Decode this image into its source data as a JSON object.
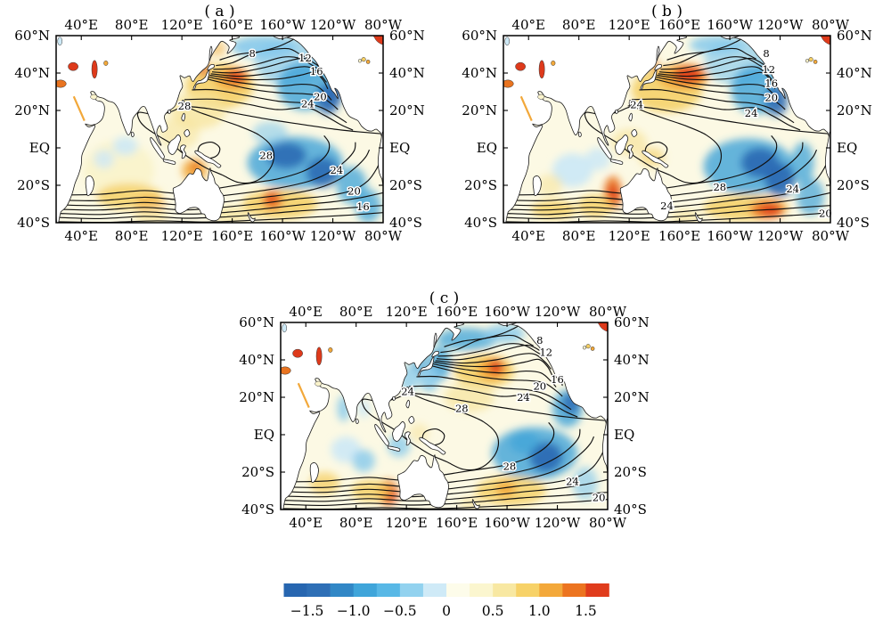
{
  "figure": {
    "background": "#ffffff"
  },
  "axes": {
    "lon_labels": [
      {
        "text": "40°E",
        "lon": 40
      },
      {
        "text": "80°E",
        "lon": 80
      },
      {
        "text": "120°E",
        "lon": 120
      },
      {
        "text": "160°E",
        "lon": 160
      },
      {
        "text": "160°W",
        "lon": 200
      },
      {
        "text": "120°W",
        "lon": 240
      },
      {
        "text": "80°W",
        "lon": 280
      }
    ],
    "lat_labels": [
      {
        "text": "60°N",
        "lat": 60
      },
      {
        "text": "40°N",
        "lat": 40
      },
      {
        "text": "20°N",
        "lat": 20
      },
      {
        "text": "EQ",
        "lat": 0
      },
      {
        "text": "20°S",
        "lat": -20
      },
      {
        "text": "40°S",
        "lat": -40
      }
    ]
  },
  "colorbar": {
    "tick_labels": [
      "−1.5",
      "−1.0",
      "−0.5",
      "0",
      "0.5",
      "1.0",
      "1.5"
    ],
    "colors": [
      "#2766b0",
      "#2e6fb6",
      "#3187c6",
      "#3fa5da",
      "#58b8e6",
      "#92d2ef",
      "#cfeaf7",
      "#fdfcea",
      "#fbf6cf",
      "#f8e8a2",
      "#f7d268",
      "#f3a83a",
      "#ec7420",
      "#e03c1c"
    ]
  },
  "palette": {
    "base": "#fcf9e4",
    "b4": "#2a68b2",
    "b3": "#3fa3d8",
    "b2": "#86c9ec",
    "b1": "#cde9f6",
    "y1": "#faf3cb",
    "y2": "#f7e49c",
    "y3": "#f5cf63",
    "o1": "#f2a83a",
    "o2": "#e97420",
    "r1": "#de3a1b"
  },
  "chart_data": {
    "type": "heatmap",
    "description": "Three map panels of sea surface temperature: black contours show climatological SST (contour labels in °C-like values 8-28) and shading shows SST anomalies from -1.5 to +1.5 over the Indo-Pacific domain.",
    "lon_range": [
      20,
      280
    ],
    "lat_range": [
      -40,
      60
    ],
    "contour_levels": [
      6,
      8,
      10,
      12,
      14,
      16,
      18,
      20,
      22,
      24,
      26,
      28,
      29
    ],
    "colorbar_range": [
      -1.75,
      1.75
    ],
    "colorbar_step": 0.25,
    "panels": [
      {
        "id": "a",
        "title": "( a )",
        "contour_labels": [
          {
            "v": "8",
            "lon": 176,
            "lat": 50.5
          },
          {
            "v": "12",
            "lon": 218,
            "lat": 48
          },
          {
            "v": "16",
            "lon": 227,
            "lat": 41
          },
          {
            "v": "20",
            "lon": 230,
            "lat": 27.5
          },
          {
            "v": "24",
            "lon": 220,
            "lat": 23.5
          },
          {
            "v": "28",
            "lon": 122,
            "lat": 22.5
          },
          {
            "v": "28",
            "lon": 187,
            "lat": -4
          },
          {
            "v": "24",
            "lon": 243,
            "lat": -12
          },
          {
            "v": "20",
            "lon": 257,
            "lat": -23
          },
          {
            "v": "16",
            "lon": 264,
            "lat": -31.5
          }
        ],
        "anomalies": [
          [
            185,
            54,
            26,
            6,
            "b2",
            0.9
          ],
          [
            206,
            46,
            28,
            13,
            "b2",
            0.7
          ],
          [
            218,
            33,
            22,
            13,
            "b3",
            0.8
          ],
          [
            236,
            26,
            9,
            8,
            "b4",
            0.9
          ],
          [
            243,
            31,
            5,
            8,
            "b4",
            0.8
          ],
          [
            150,
            33,
            27,
            12,
            "y3",
            0.85
          ],
          [
            160,
            37,
            14,
            6,
            "o1",
            0.95
          ],
          [
            163,
            38,
            8,
            3.5,
            "r1",
            0.95
          ],
          [
            137,
            43,
            3,
            5,
            "r1",
            0.9
          ],
          [
            148,
            53,
            7,
            4,
            "o1",
            0.5
          ],
          [
            133,
            20,
            22,
            10,
            "y2",
            0.75
          ],
          [
            118,
            8,
            16,
            9,
            "y2",
            0.6
          ],
          [
            210,
            -8,
            38,
            14,
            "b3",
            0.8
          ],
          [
            203,
            -4,
            16,
            7,
            "b4",
            0.85
          ],
          [
            232,
            -13,
            13,
            8,
            "b4",
            0.85
          ],
          [
            255,
            -20,
            12,
            10,
            "b3",
            0.75
          ],
          [
            268,
            -31,
            10,
            9,
            "b3",
            0.75
          ],
          [
            190,
            8,
            14,
            6,
            "b2",
            0.6
          ],
          [
            70,
            -12,
            28,
            16,
            "y1",
            0.95
          ],
          [
            75,
            1,
            10,
            5,
            "b1",
            0.9
          ],
          [
            58,
            -6,
            8,
            5,
            "b1",
            0.8
          ],
          [
            78,
            -26,
            26,
            7,
            "y3",
            0.8
          ],
          [
            95,
            -30,
            12,
            5,
            "o1",
            0.55
          ],
          [
            130,
            -12,
            10,
            6,
            "o1",
            0.85
          ],
          [
            131,
            -10,
            4,
            3,
            "o2",
            0.9
          ],
          [
            198,
            -30,
            30,
            8,
            "y3",
            0.85
          ],
          [
            192,
            -28,
            8,
            5,
            "o2",
            0.9
          ],
          [
            191,
            -27,
            4,
            2.5,
            "r1",
            0.9
          ],
          [
            160,
            -36,
            14,
            5,
            "y2",
            0.75
          ],
          [
            95,
            -37,
            14,
            4,
            "y2",
            0.7
          ],
          [
            278,
            27,
            4,
            6,
            "b4",
            0.85
          ],
          [
            262,
            24,
            7,
            4,
            "y1",
            0.8
          ]
        ]
      },
      {
        "id": "b",
        "title": "( b )",
        "contour_labels": [
          {
            "v": "8",
            "lon": 229,
            "lat": 50.5
          },
          {
            "v": "12",
            "lon": 231,
            "lat": 42
          },
          {
            "v": "16",
            "lon": 233,
            "lat": 34.5
          },
          {
            "v": "20",
            "lon": 233,
            "lat": 27
          },
          {
            "v": "24",
            "lon": 126,
            "lat": 23
          },
          {
            "v": "24",
            "lon": 217,
            "lat": 18.5
          },
          {
            "v": "28",
            "lon": 192,
            "lat": -21
          },
          {
            "v": "24",
            "lon": 250,
            "lat": -22
          },
          {
            "v": "24",
            "lon": 150,
            "lat": -31
          },
          {
            "v": "20",
            "lon": 276,
            "lat": -35
          }
        ],
        "anomalies": [
          [
            190,
            55,
            22,
            5,
            "b2",
            0.85
          ],
          [
            208,
            46,
            28,
            13,
            "b2",
            0.65
          ],
          [
            221,
            31,
            20,
            13,
            "b3",
            0.8
          ],
          [
            237,
            25,
            9,
            8,
            "b4",
            0.85
          ],
          [
            150,
            31,
            28,
            12,
            "y3",
            0.85
          ],
          [
            163,
            38,
            20,
            7,
            "o1",
            0.95
          ],
          [
            167,
            39,
            12,
            4.5,
            "r1",
            0.95
          ],
          [
            137,
            55,
            4,
            3.5,
            "r1",
            0.9
          ],
          [
            140,
            44,
            3,
            4,
            "o2",
            0.7
          ],
          [
            215,
            -10,
            36,
            15,
            "b3",
            0.8
          ],
          [
            224,
            -8,
            15,
            8,
            "b4",
            0.9
          ],
          [
            240,
            -17,
            12,
            9,
            "b4",
            0.9
          ],
          [
            258,
            -8,
            9,
            11,
            "b3",
            0.75
          ],
          [
            264,
            -26,
            11,
            10,
            "b3",
            0.7
          ],
          [
            120,
            3,
            14,
            7,
            "y2",
            0.7
          ],
          [
            138,
            -5,
            10,
            5,
            "y3",
            0.6
          ],
          [
            75,
            -12,
            16,
            9,
            "b1",
            0.95
          ],
          [
            95,
            -6,
            10,
            6,
            "b1",
            0.85
          ],
          [
            57,
            -20,
            10,
            6,
            "y2",
            0.6
          ],
          [
            107,
            -24,
            7,
            9,
            "o2",
            0.9
          ],
          [
            107,
            -25,
            4,
            5,
            "r1",
            0.9
          ],
          [
            93,
            -31,
            14,
            6,
            "y3",
            0.8
          ],
          [
            60,
            -33,
            18,
            5,
            "y3",
            0.8
          ],
          [
            213,
            -32,
            34,
            7,
            "y3",
            0.85
          ],
          [
            230,
            -33,
            14,
            5,
            "o2",
            0.9
          ],
          [
            232,
            -33,
            8,
            3,
            "r1",
            0.9
          ],
          [
            165,
            -37,
            12,
            4,
            "y2",
            0.7
          ],
          [
            278,
            20,
            4,
            8,
            "b3",
            0.75
          ],
          [
            262,
            24,
            7,
            4,
            "y1",
            0.8
          ]
        ]
      },
      {
        "id": "c",
        "title": "( c )",
        "contour_labels": [
          {
            "v": "8",
            "lon": 226,
            "lat": 50.5
          },
          {
            "v": "12",
            "lon": 231,
            "lat": 44
          },
          {
            "v": "16",
            "lon": 240,
            "lat": 29.5
          },
          {
            "v": "20",
            "lon": 226,
            "lat": 26
          },
          {
            "v": "24",
            "lon": 121,
            "lat": 23
          },
          {
            "v": "24",
            "lon": 213,
            "lat": 20
          },
          {
            "v": "28",
            "lon": 164,
            "lat": 14
          },
          {
            "v": "28",
            "lon": 202,
            "lat": -17
          },
          {
            "v": "24",
            "lon": 252,
            "lat": -25
          },
          {
            "v": "20",
            "lon": 273,
            "lat": -33.5
          }
        ],
        "anomalies": [
          [
            168,
            51,
            24,
            6,
            "b3",
            0.75
          ],
          [
            198,
            54,
            16,
            5,
            "b2",
            0.8
          ],
          [
            146,
            38,
            9,
            9,
            "b3",
            0.8
          ],
          [
            138,
            30,
            8,
            7,
            "b2",
            0.85
          ],
          [
            122,
            30,
            8,
            7,
            "b2",
            0.75
          ],
          [
            130,
            39,
            6,
            6,
            "b3",
            0.7
          ],
          [
            182,
            34,
            24,
            9,
            "y3",
            0.85
          ],
          [
            188,
            35,
            12,
            6,
            "o1",
            0.95
          ],
          [
            191,
            36,
            6,
            4,
            "r1",
            0.9
          ],
          [
            170,
            20,
            20,
            8,
            "y2",
            0.7
          ],
          [
            222,
            -10,
            34,
            14,
            "b3",
            0.8
          ],
          [
            231,
            -12,
            13,
            8,
            "b4",
            0.9
          ],
          [
            214,
            -4,
            12,
            6,
            "b3",
            0.75
          ],
          [
            248,
            14,
            12,
            10,
            "b3",
            0.8
          ],
          [
            251,
            17,
            7,
            6,
            "b4",
            0.8
          ],
          [
            262,
            -26,
            10,
            9,
            "b2",
            0.65
          ],
          [
            70,
            14,
            5,
            7,
            "b2",
            0.8
          ],
          [
            86,
            14,
            5,
            5,
            "b1",
            0.8
          ],
          [
            72,
            -8,
            12,
            7,
            "b1",
            0.9
          ],
          [
            86,
            -14,
            9,
            6,
            "b2",
            0.8
          ],
          [
            114,
            -6,
            9,
            6,
            "b2",
            0.75
          ],
          [
            130,
            1,
            8,
            5,
            "y2",
            0.55
          ],
          [
            55,
            -26,
            12,
            6,
            "y3",
            0.75
          ],
          [
            105,
            -31,
            8,
            7,
            "o2",
            0.9
          ],
          [
            107,
            -32,
            5,
            4,
            "r1",
            0.9
          ],
          [
            92,
            -30,
            16,
            6,
            "y3",
            0.8
          ],
          [
            203,
            -30,
            28,
            8,
            "y3",
            0.8
          ],
          [
            199,
            -29,
            8,
            4,
            "o1",
            0.9
          ],
          [
            172,
            -37,
            10,
            4,
            "y2",
            0.65
          ],
          [
            258,
            55,
            6,
            3,
            "y2",
            0.6
          ],
          [
            262,
            24,
            7,
            4,
            "y1",
            0.8
          ]
        ]
      }
    ]
  }
}
